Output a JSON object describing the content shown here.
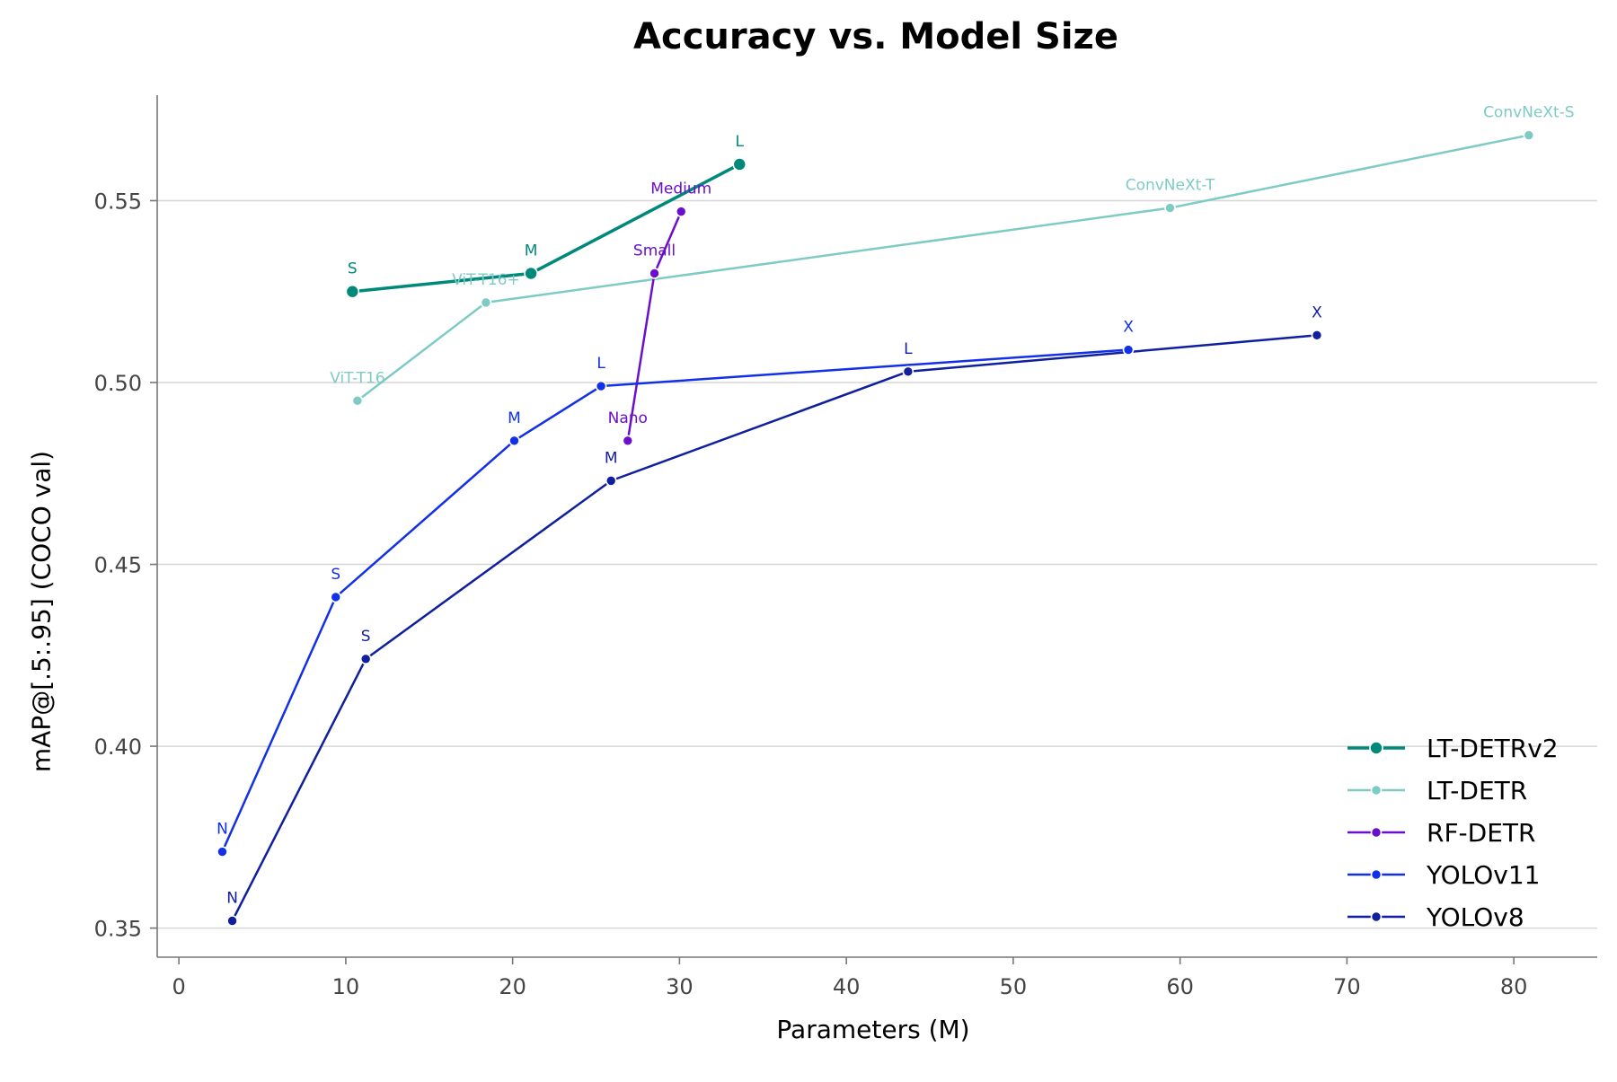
{
  "chart_data": {
    "type": "line",
    "title": "Accuracy vs. Model Size",
    "xlabel": "Parameters (M)",
    "ylabel": "mAP@[.5:.95] (COCO val)",
    "xlim": [
      -1.3,
      85
    ],
    "ylim": [
      0.342,
      0.579
    ],
    "xticks": [
      0,
      10,
      20,
      30,
      40,
      50,
      60,
      70,
      80
    ],
    "yticks": [
      0.35,
      0.4,
      0.45,
      0.5,
      0.55
    ],
    "xtick_labels": [
      "0",
      "10",
      "20",
      "30",
      "40",
      "50",
      "60",
      "70",
      "80"
    ],
    "ytick_labels": [
      "0.35",
      "0.40",
      "0.45",
      "0.50",
      "0.55"
    ],
    "grid": "horizontal",
    "legend_position": "bottom-right",
    "series": [
      {
        "name": "LT-DETRv2",
        "color": "#00897b",
        "line_width": 3.5,
        "marker_size": 7,
        "points": [
          {
            "x": 10.4,
            "y": 0.525,
            "label": "S"
          },
          {
            "x": 21.1,
            "y": 0.53,
            "label": "M"
          },
          {
            "x": 33.6,
            "y": 0.56,
            "label": "L"
          }
        ]
      },
      {
        "name": "LT-DETR",
        "color": "#7ecbc6",
        "line_width": 2.5,
        "marker_size": 5.5,
        "points": [
          {
            "x": 10.7,
            "y": 0.495,
            "label": "ViT-T16"
          },
          {
            "x": 18.4,
            "y": 0.522,
            "label": "ViT-T16+"
          },
          {
            "x": 59.4,
            "y": 0.548,
            "label": "ConvNeXt-T"
          },
          {
            "x": 80.9,
            "y": 0.568,
            "label": "ConvNeXt-S"
          }
        ]
      },
      {
        "name": "RF-DETR",
        "color": "#6a0fcc",
        "line_width": 2.5,
        "marker_size": 5.5,
        "points": [
          {
            "x": 26.9,
            "y": 0.484,
            "label": "Nano"
          },
          {
            "x": 28.5,
            "y": 0.53,
            "label": "Small"
          },
          {
            "x": 30.1,
            "y": 0.547,
            "label": "Medium"
          }
        ]
      },
      {
        "name": "YOLOv11",
        "color": "#1230e8",
        "line_width": 2.5,
        "marker_size": 5.5,
        "points": [
          {
            "x": 2.6,
            "y": 0.371,
            "label": "N"
          },
          {
            "x": 9.4,
            "y": 0.441,
            "label": "S"
          },
          {
            "x": 20.1,
            "y": 0.484,
            "label": "M"
          },
          {
            "x": 25.3,
            "y": 0.499,
            "label": "L"
          },
          {
            "x": 56.9,
            "y": 0.509,
            "label": "X"
          }
        ]
      },
      {
        "name": "YOLOv8",
        "color": "#0f1f9e",
        "line_width": 2.5,
        "marker_size": 5.5,
        "points": [
          {
            "x": 3.2,
            "y": 0.352,
            "label": "N"
          },
          {
            "x": 11.2,
            "y": 0.424,
            "label": "S"
          },
          {
            "x": 25.9,
            "y": 0.473,
            "label": "M"
          },
          {
            "x": 43.7,
            "y": 0.503,
            "label": "L"
          },
          {
            "x": 68.2,
            "y": 0.513,
            "label": "X"
          }
        ]
      }
    ]
  }
}
